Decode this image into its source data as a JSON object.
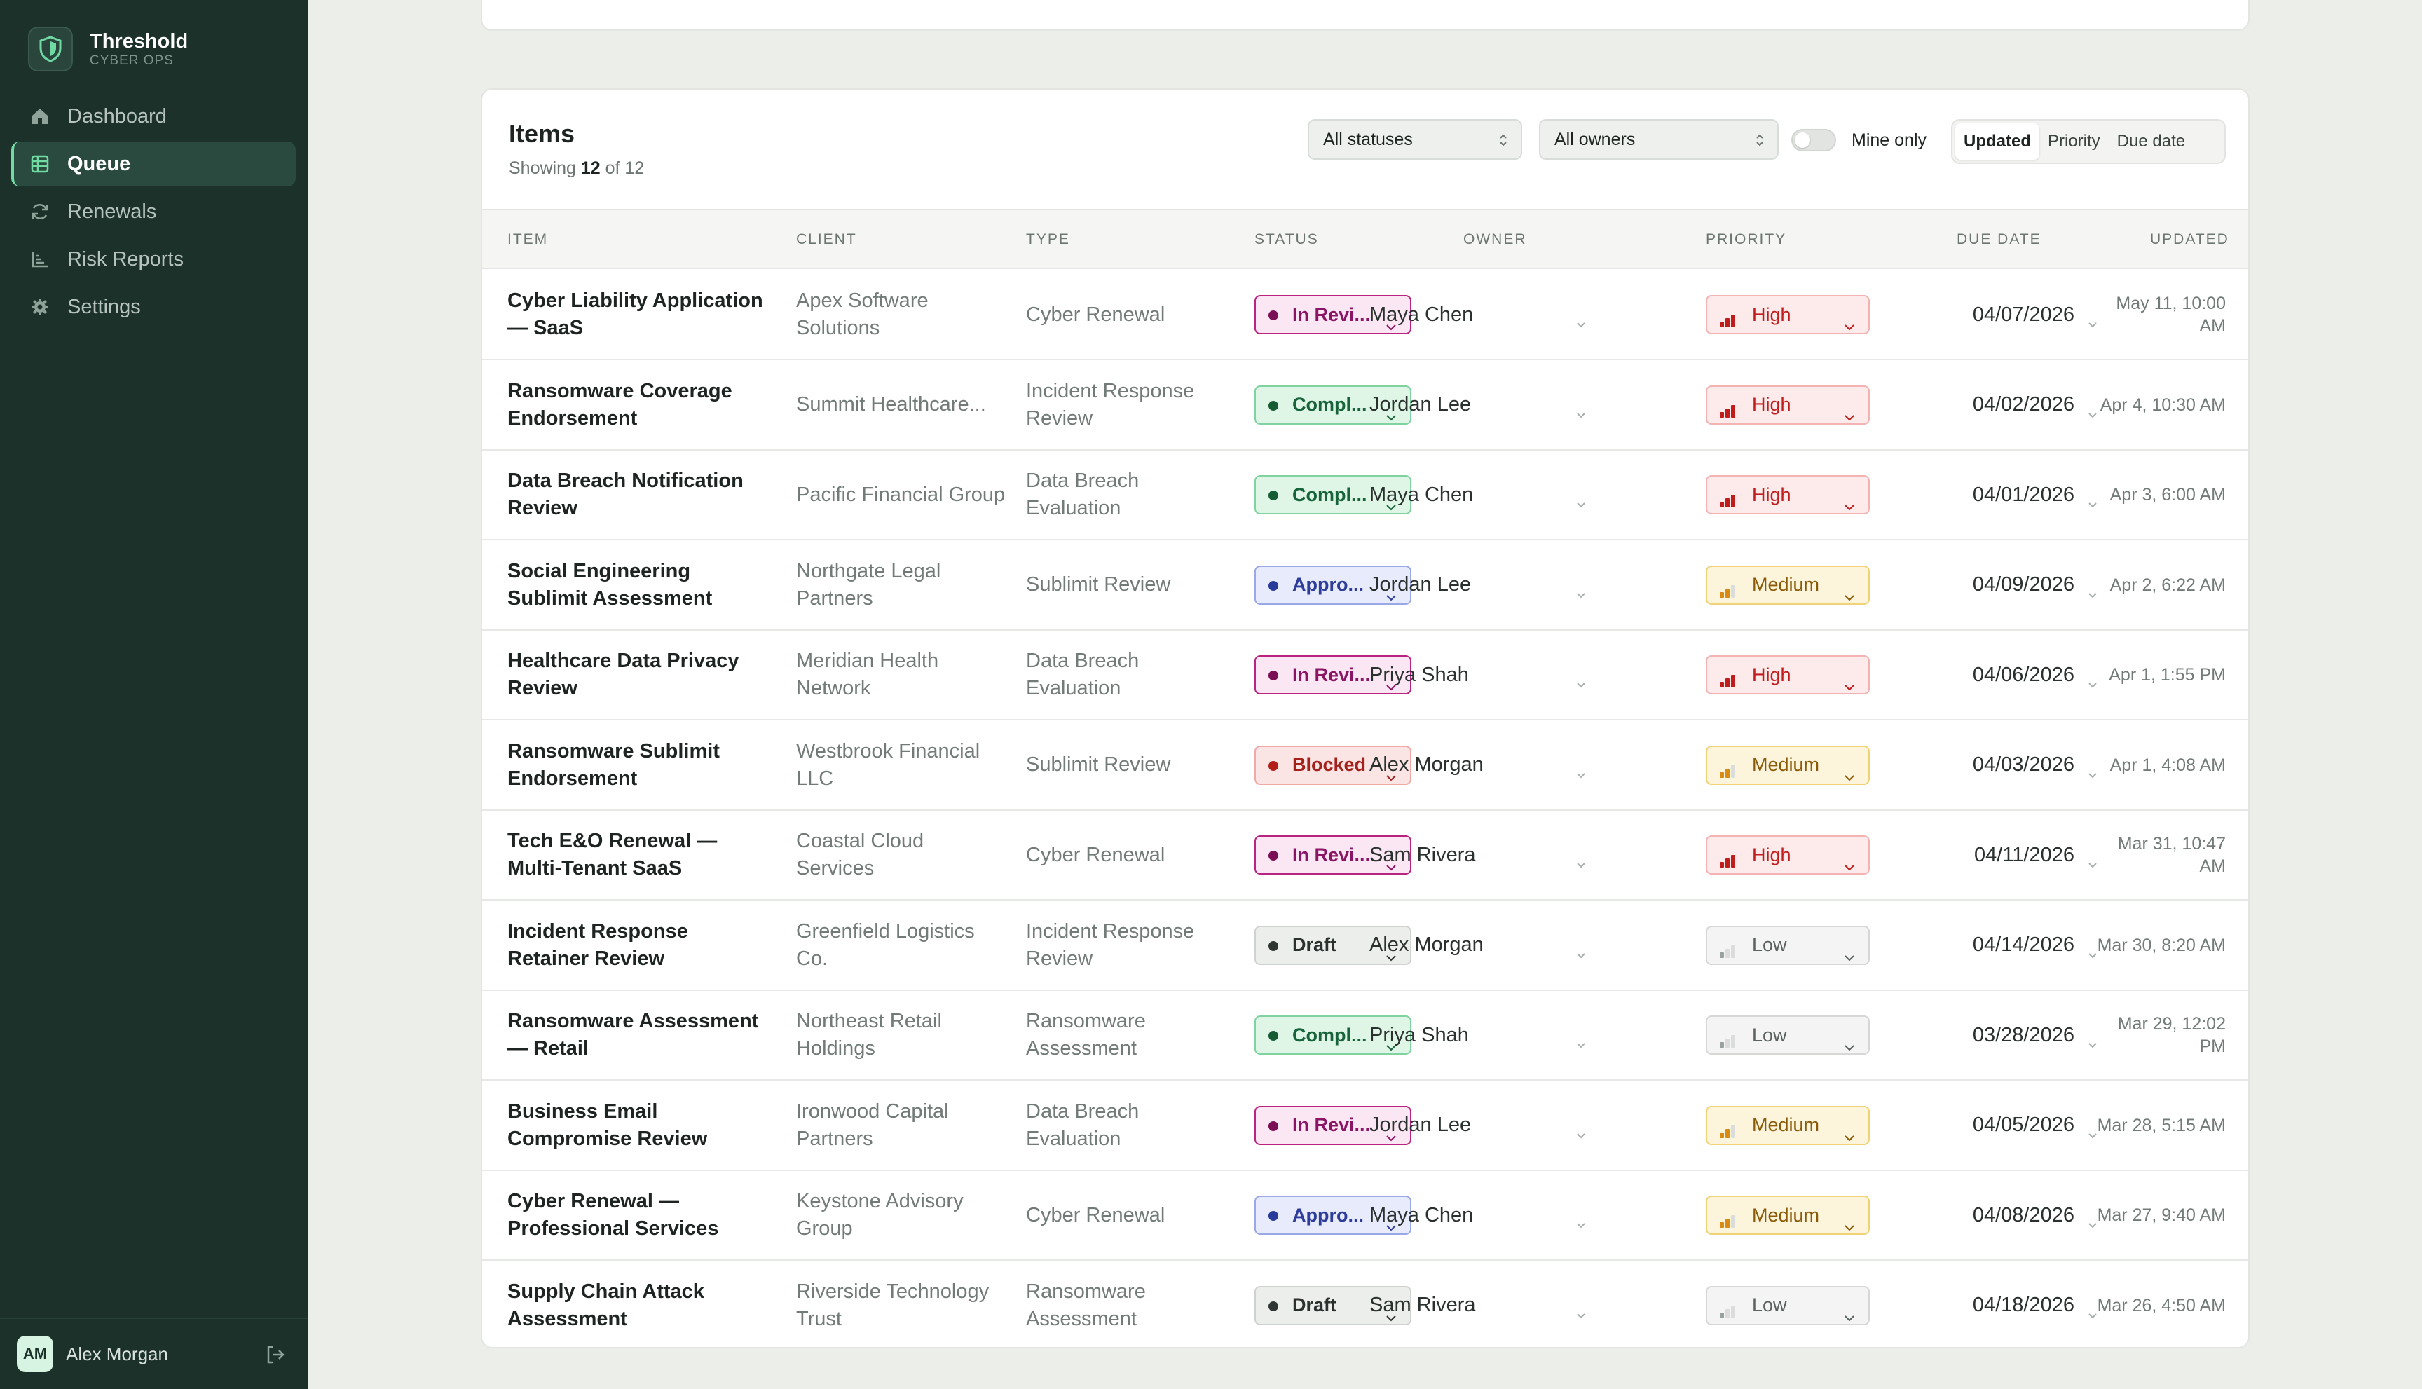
{
  "brand": {
    "name": "Threshold",
    "sub": "CYBER OPS"
  },
  "nav": [
    {
      "label": "Dashboard",
      "icon": "home-icon",
      "active": false
    },
    {
      "label": "Queue",
      "icon": "table-icon",
      "active": true
    },
    {
      "label": "Renewals",
      "icon": "refresh-icon",
      "active": false
    },
    {
      "label": "Risk Reports",
      "icon": "chart-icon",
      "active": false
    },
    {
      "label": "Settings",
      "icon": "gear-icon",
      "active": false
    }
  ],
  "user": {
    "initials": "AM",
    "name": "Alex Morgan"
  },
  "card": {
    "title": "Items",
    "showing_prefix": "Showing",
    "showing_count": "12",
    "showing_suffix": "of 12",
    "status_filter": "All statuses",
    "owner_filter": "All owners",
    "mine_only_label": "Mine only",
    "mine_only": false,
    "sort": [
      "Updated",
      "Priority",
      "Due date"
    ],
    "sort_active": "Updated"
  },
  "columns": [
    "Item",
    "Client",
    "Type",
    "Status",
    "Owner",
    "Priority",
    "Due date",
    "Updated"
  ],
  "colors": {
    "sidebar": "#1b3129",
    "accent": "#6fdba3",
    "high": "#c11c1c",
    "medium": "#8a5a07",
    "review": "#b8247f"
  },
  "rows": [
    {
      "item": "Cyber Liability Application — SaaS",
      "client": "Apex Software Solutions",
      "type": "Cyber Renewal",
      "status": "In Revi...",
      "status_kind": "review",
      "owner": "Maya Chen",
      "priority": "High",
      "priority_kind": "high",
      "due": "04/07/2026",
      "updated": "May 11, 10:00 AM"
    },
    {
      "item": "Ransomware Coverage Endorsement",
      "client": "Summit Healthcare...",
      "type": "Incident Response Review",
      "status": "Compl...",
      "status_kind": "complete",
      "owner": "Jordan Lee",
      "priority": "High",
      "priority_kind": "high",
      "due": "04/02/2026",
      "updated": "Apr 4, 10:30 AM"
    },
    {
      "item": "Data Breach Notification Review",
      "client": "Pacific Financial Group",
      "type": "Data Breach Evaluation",
      "status": "Compl...",
      "status_kind": "complete",
      "owner": "Maya Chen",
      "priority": "High",
      "priority_kind": "high",
      "due": "04/01/2026",
      "updated": "Apr 3, 6:00 AM"
    },
    {
      "item": "Social Engineering Sublimit Assessment",
      "client": "Northgate Legal Partners",
      "type": "Sublimit Review",
      "status": "Appro...",
      "status_kind": "approved",
      "owner": "Jordan Lee",
      "priority": "Medium",
      "priority_kind": "medium",
      "due": "04/09/2026",
      "updated": "Apr 2, 6:22 AM"
    },
    {
      "item": "Healthcare Data Privacy Review",
      "client": "Meridian Health Network",
      "type": "Data Breach Evaluation",
      "status": "In Revi...",
      "status_kind": "review",
      "owner": "Priya Shah",
      "priority": "High",
      "priority_kind": "high",
      "due": "04/06/2026",
      "updated": "Apr 1, 1:55 PM"
    },
    {
      "item": "Ransomware Sublimit Endorsement",
      "client": "Westbrook Financial LLC",
      "type": "Sublimit Review",
      "status": "Blocked",
      "status_kind": "blocked",
      "owner": "Alex Morgan",
      "priority": "Medium",
      "priority_kind": "medium",
      "due": "04/03/2026",
      "updated": "Apr 1, 4:08 AM"
    },
    {
      "item": "Tech E&O Renewal — Multi-Tenant SaaS",
      "client": "Coastal Cloud Services",
      "type": "Cyber Renewal",
      "status": "In Revi...",
      "status_kind": "review",
      "owner": "Sam Rivera",
      "priority": "High",
      "priority_kind": "high",
      "due": "04/11/2026",
      "updated": "Mar 31, 10:47 AM"
    },
    {
      "item": "Incident Response Retainer Review",
      "client": "Greenfield Logistics Co.",
      "type": "Incident Response Review",
      "status": "Draft",
      "status_kind": "draft",
      "owner": "Alex Morgan",
      "priority": "Low",
      "priority_kind": "low",
      "due": "04/14/2026",
      "updated": "Mar 30, 8:20 AM"
    },
    {
      "item": "Ransomware Assessment — Retail",
      "client": "Northeast Retail Holdings",
      "type": "Ransomware Assessment",
      "status": "Compl...",
      "status_kind": "complete",
      "owner": "Priya Shah",
      "priority": "Low",
      "priority_kind": "low",
      "due": "03/28/2026",
      "updated": "Mar 29, 12:02 PM"
    },
    {
      "item": "Business Email Compromise Review",
      "client": "Ironwood Capital Partners",
      "type": "Data Breach Evaluation",
      "status": "In Revi...",
      "status_kind": "review",
      "owner": "Jordan Lee",
      "priority": "Medium",
      "priority_kind": "medium",
      "due": "04/05/2026",
      "updated": "Mar 28, 5:15 AM"
    },
    {
      "item": "Cyber Renewal — Professional Services",
      "client": "Keystone Advisory Group",
      "type": "Cyber Renewal",
      "status": "Appro...",
      "status_kind": "approved",
      "owner": "Maya Chen",
      "priority": "Medium",
      "priority_kind": "medium",
      "due": "04/08/2026",
      "updated": "Mar 27, 9:40 AM"
    },
    {
      "item": "Supply Chain Attack Assessment",
      "client": "Riverside Technology Trust",
      "type": "Ransomware Assessment",
      "status": "Draft",
      "status_kind": "draft",
      "owner": "Sam Rivera",
      "priority": "Low",
      "priority_kind": "low",
      "due": "04/18/2026",
      "updated": "Mar 26, 4:50 AM"
    }
  ]
}
